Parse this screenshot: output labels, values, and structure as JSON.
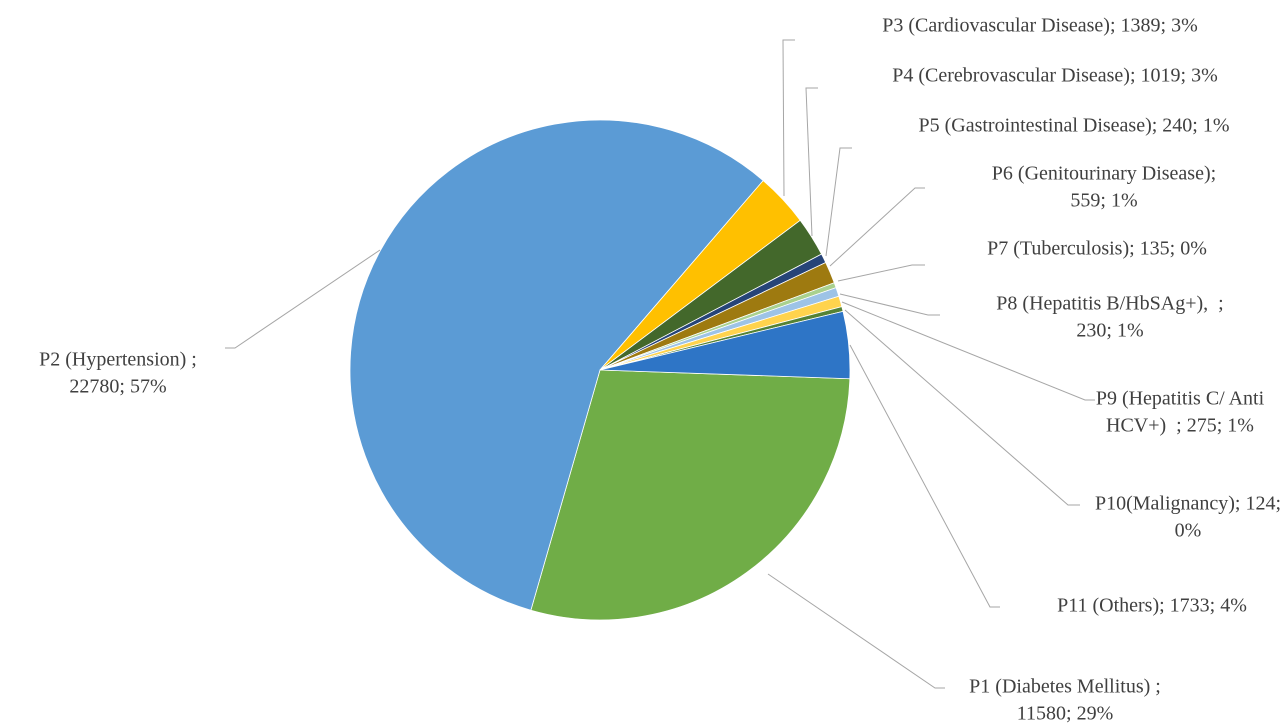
{
  "chart_data": {
    "type": "pie",
    "values": [
      11580,
      22780,
      1389,
      1019,
      240,
      559,
      135,
      230,
      275,
      124,
      1733
    ],
    "colors": [
      "#70ad47",
      "#5b9bd5",
      "#ffc000",
      "#43682b",
      "#264478",
      "#9e7a10",
      "#a9d18e",
      "#9dc3e6",
      "#ffd34d",
      "#548235",
      "#2e75c6"
    ],
    "value_labels": [
      [
        "P1 (Diabetes Mellitus) ;",
        "11580; 29%"
      ],
      [
        "P2 (Hypertension) ;",
        "22780; 57%"
      ],
      [
        "P3 (Cardiovascular Disease); 1389; 3%"
      ],
      [
        "P4 (Cerebrovascular Disease); 1019; 3%"
      ],
      [
        "P5 (Gastrointestinal Disease); 240; 1%"
      ],
      [
        "P6 (Genitourinary Disease);",
        "559; 1%"
      ],
      [
        "P7 (Tuberculosis); 135; 0%"
      ],
      [
        "P8 (Hepatitis B/HbSAg+),  ;",
        "230; 1%"
      ],
      [
        "P9 (Hepatitis C/ Anti",
        "HCV+)  ; 275; 1%"
      ],
      [
        "P10(Malignancy); 124;",
        "0%"
      ],
      [
        "P11 (Others); 1733; 4%"
      ]
    ]
  }
}
